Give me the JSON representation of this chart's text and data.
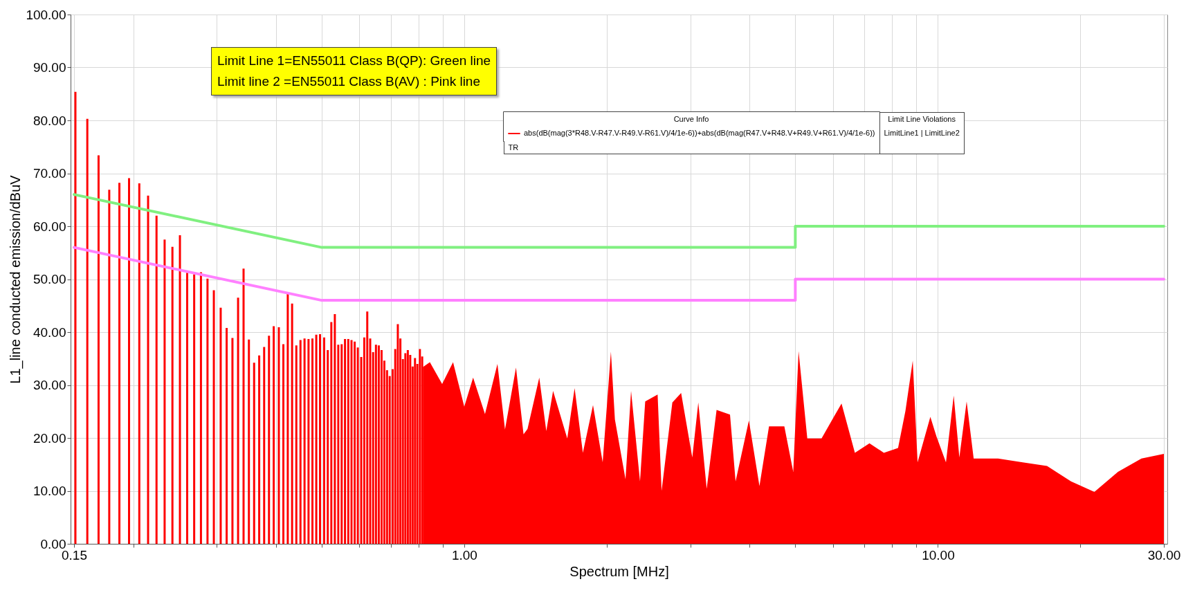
{
  "chart_data": {
    "type": "bar",
    "xlabel": "Spectrum [MHz]",
    "ylabel": "L1_line conducted emission/dBuV",
    "legend_title": "Curve Info",
    "legend": "top right",
    "grid": true,
    "log": "x",
    "xlim": [
      0.15,
      30
    ],
    "ylim": [
      0,
      100
    ],
    "xticks": [
      {
        "value": 0.15,
        "label": "0.15"
      },
      {
        "value": 0.2,
        "label": null
      },
      {
        "value": 0.3,
        "label": null
      },
      {
        "value": 0.4,
        "label": null
      },
      {
        "value": 0.5,
        "label": null
      },
      {
        "value": 0.6,
        "label": null
      },
      {
        "value": 0.7,
        "label": null
      },
      {
        "value": 0.8,
        "label": null
      },
      {
        "value": 0.9,
        "label": null
      },
      {
        "value": 1,
        "label": "1.00"
      },
      {
        "value": 2,
        "label": null
      },
      {
        "value": 3,
        "label": null
      },
      {
        "value": 4,
        "label": null
      },
      {
        "value": 5,
        "label": null
      },
      {
        "value": 6,
        "label": null
      },
      {
        "value": 7,
        "label": null
      },
      {
        "value": 8,
        "label": null
      },
      {
        "value": 9,
        "label": null
      },
      {
        "value": 10,
        "label": "10.00"
      },
      {
        "value": 20,
        "label": null
      },
      {
        "value": 30,
        "label": "30.00"
      }
    ],
    "yticks": [
      {
        "value": 0,
        "label": "0.00"
      },
      {
        "value": 10,
        "label": "10.00"
      },
      {
        "value": 20,
        "label": "20.00"
      },
      {
        "value": 30,
        "label": "30.00"
      },
      {
        "value": 40,
        "label": "40.00"
      },
      {
        "value": 50,
        "label": "50.00"
      },
      {
        "value": 60,
        "label": "60.00"
      },
      {
        "value": 70,
        "label": "70.00"
      },
      {
        "value": 80,
        "label": "80.00"
      },
      {
        "value": 90,
        "label": "90.00"
      },
      {
        "value": 100,
        "label": "100.00"
      }
    ],
    "annotations": [
      "Limit Line 1=EN55011 Class B(QP): Green line",
      "Limit line 2 =EN55011 Class B(AV) : Pink line",
      "TR",
      "Limit Line Violations",
      "LimitLine1 | LimitLine2"
    ],
    "series": [
      {
        "name": "abs(dB(mag(3*R48.V-R47.V-R49.V-R61.V)/4/1e-6))+abs(dB(mag(R47.V+R48.V+R49.V+R61.V)/4/1e-6))",
        "color": "#ff0000",
        "x": [
          0.151,
          0.16,
          0.169,
          0.178,
          0.187,
          0.196,
          0.206,
          0.215,
          0.224,
          0.233,
          0.242,
          0.251,
          0.26,
          0.269,
          0.278,
          0.287,
          0.296,
          0.306,
          0.315,
          0.324,
          0.333,
          0.342,
          0.351,
          0.36,
          0.369,
          0.378,
          0.387,
          0.396,
          0.406,
          0.415,
          0.424,
          0.433,
          0.442,
          0.451,
          0.46,
          0.469,
          0.478,
          0.487,
          0.496,
          0.506,
          0.515,
          0.524,
          0.533,
          0.542,
          0.551,
          0.56,
          0.569,
          0.578,
          0.587,
          0.596,
          0.606,
          0.615,
          0.624,
          0.633,
          0.642,
          0.651,
          0.66,
          0.669,
          0.678,
          0.687,
          0.696,
          0.706,
          0.715,
          0.724,
          0.733,
          0.742,
          0.751,
          0.76,
          0.769,
          0.778,
          0.787,
          0.796,
          0.806,
          0.815
        ],
        "values": [
          85.4,
          80.3,
          73.4,
          66.9,
          68.2,
          69.1,
          68.1,
          65.8,
          62.0,
          57.5,
          56.1,
          58.3,
          51.2,
          50.9,
          51.3,
          50.1,
          47.9,
          44.6,
          40.8,
          38.9,
          46.5,
          52.0,
          38.6,
          34.2,
          35.6,
          37.2,
          39.3,
          41.1,
          40.9,
          37.7,
          47.2,
          45.4,
          37.5,
          38.5,
          38.8,
          38.7,
          38.8,
          39.5,
          39.6,
          39.0,
          36.6,
          41.9,
          43.4,
          37.6,
          37.7,
          38.7,
          38.7,
          38.5,
          38.2,
          37.1,
          35.3,
          39.0,
          43.9,
          38.8,
          36.2,
          37.6,
          37.5,
          36.6,
          34.6,
          32.8,
          31.7,
          33.0,
          36.8,
          41.5,
          38.8,
          34.9,
          36.0,
          36.6,
          35.7,
          33.5,
          35.1,
          34.0,
          36.8,
          35.4
        ]
      },
      {
        "color": "#ff0000",
        "type": "area",
        "x": [
          0.818,
          0.846,
          0.898,
          0.947,
          1.0,
          1.044,
          1.106,
          1.175,
          1.219,
          1.286,
          1.334,
          1.36,
          1.44,
          1.49,
          1.54,
          1.65,
          1.71,
          1.78,
          1.87,
          1.96,
          2.04,
          2.08,
          2.19,
          2.25,
          2.35,
          2.41,
          2.56,
          2.61,
          2.75,
          2.87,
          3.03,
          3.12,
          3.25,
          3.41,
          3.64,
          3.74,
          3.99,
          4.2,
          4.4,
          4.74,
          4.95,
          5.08,
          5.3,
          5.68,
          6.03,
          6.26,
          6.68,
          7.17,
          7.69,
          8.24,
          8.54,
          8.85,
          9.06,
          9.64,
          9.93,
          10.4,
          10.8,
          11.1,
          11.5,
          11.9,
          13.4,
          15.1,
          17.0,
          19.1,
          21.4,
          24.0,
          26.9,
          30.0
        ],
        "values": [
          33.4,
          34.3,
          30.2,
          34.3,
          25.9,
          31.4,
          24.5,
          34.0,
          21.6,
          33.3,
          20.7,
          21.7,
          31.4,
          21.3,
          28.9,
          19.9,
          29.4,
          17.2,
          26.2,
          15.4,
          36.3,
          23.5,
          12.2,
          28.9,
          11.8,
          26.9,
          28.2,
          10.0,
          26.7,
          28.5,
          16.3,
          26.7,
          10.4,
          25.3,
          24.4,
          11.8,
          23.3,
          10.9,
          22.2,
          22.2,
          13.6,
          36.4,
          19.9,
          19.9,
          24.0,
          26.5,
          17.2,
          19.0,
          17.2,
          18.1,
          25.1,
          34.6,
          15.4,
          24.0,
          20.3,
          15.4,
          28.0,
          16.3,
          26.9,
          16.1,
          16.1,
          15.4,
          14.7,
          11.8,
          9.8,
          13.6,
          16.1,
          17.0
        ]
      },
      {
        "color": "#80f080",
        "type": "line",
        "x": [
          0.15,
          0.5,
          5,
          5,
          30
        ],
        "values": [
          66,
          56,
          56,
          60,
          60
        ]
      },
      {
        "color": "#ff80ff",
        "type": "line",
        "x": [
          0.15,
          0.5,
          5,
          5,
          30
        ],
        "values": [
          56,
          46,
          46,
          50,
          50
        ]
      }
    ]
  }
}
